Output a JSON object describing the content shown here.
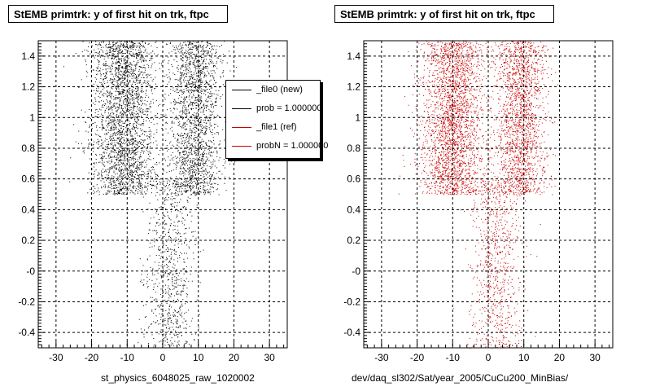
{
  "colors": {
    "file0": "#000000",
    "file1": "#cc0000",
    "grid": "#000000",
    "frame": "#000000"
  },
  "panels": [
    {
      "title": "StEMB primtrk: y of first hit on trk, ftpc",
      "footer": "st_physics_6048025_raw_1020002"
    },
    {
      "title": "StEMB primtrk: y of first hit on trk, ftpc",
      "footer": "dev/daq_sl302/Sat/year_2005/CuCu200_MinBias/"
    }
  ],
  "legend": [
    {
      "label": "_file0 (new)",
      "color": "#000000"
    },
    {
      "label": "prob = 1.000000",
      "color": "#000000"
    },
    {
      "label": "_file1 (ref)",
      "color": "#cc0000"
    },
    {
      "label": "probN = 1.000000",
      "color": "#cc0000"
    }
  ],
  "chart_data": [
    {
      "type": "scatter",
      "title": "StEMB primtrk: y of first hit on trk, ftpc",
      "xlabel": "st_physics_6048025_raw_1020002",
      "ylabel": "",
      "xlim": [
        -35,
        35
      ],
      "ylim": [
        -0.5,
        1.5
      ],
      "xticks": [
        -30,
        -20,
        -10,
        0,
        10,
        20,
        30
      ],
      "yticks": [
        -0.4,
        -0.2,
        0,
        0.2,
        0.4,
        0.6,
        0.8,
        1,
        1.2,
        1.4
      ],
      "ytick_labels": [
        "-0.4",
        "-0.2",
        "-0",
        "0.2",
        "0.4",
        "0.6",
        "0.8",
        "1",
        "1.2",
        "1.4"
      ],
      "grid": true,
      "series": [
        {
          "name": "_file0 (new)",
          "color": "#000000",
          "density_bands": [
            {
              "x_center": -11,
              "x_width": 4.5,
              "y_range": [
                0.5,
                1.5
              ],
              "weight": 0.5
            },
            {
              "x_center": 9,
              "x_width": 3.5,
              "y_range": [
                0.5,
                1.5
              ],
              "weight": 0.35
            },
            {
              "x_center": 2,
              "x_width": 3.5,
              "y_range": [
                -0.5,
                0.6
              ],
              "weight": 0.15
            }
          ]
        }
      ]
    },
    {
      "type": "scatter",
      "title": "StEMB primtrk: y of first hit on trk, ftpc",
      "xlabel": "dev/daq_sl302/Sat/year_2005/CuCu200_MinBias/",
      "ylabel": "",
      "xlim": [
        -35,
        35
      ],
      "ylim": [
        -0.5,
        1.5
      ],
      "xticks": [
        -30,
        -20,
        -10,
        0,
        10,
        20,
        30
      ],
      "yticks": [
        -0.4,
        -0.2,
        0,
        0.2,
        0.4,
        0.6,
        0.8,
        1,
        1.2,
        1.4
      ],
      "ytick_labels": [
        "-0.4",
        "-0.2",
        "-0",
        "0.2",
        "0.4",
        "0.6",
        "0.8",
        "1",
        "1.2",
        "1.4"
      ],
      "grid": true,
      "series": [
        {
          "name": "_file1 (ref)",
          "color": "#cc0000",
          "density_bands": [
            {
              "x_center": -10,
              "x_width": 4.5,
              "y_range": [
                0.5,
                1.5
              ],
              "weight": 0.5
            },
            {
              "x_center": 9,
              "x_width": 3.5,
              "y_range": [
                0.5,
                1.5
              ],
              "weight": 0.35
            },
            {
              "x_center": 2,
              "x_width": 3.5,
              "y_range": [
                -0.5,
                0.6
              ],
              "weight": 0.15
            }
          ]
        }
      ]
    }
  ]
}
